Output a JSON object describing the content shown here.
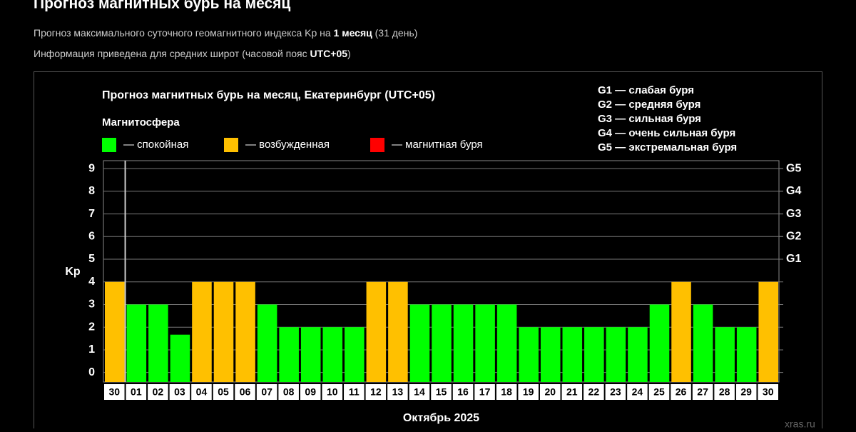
{
  "header": {
    "title": "Прогноз магнитных бурь на месяц",
    "line1": [
      "Прогноз максимального суточного геомагнитного индекса Kp на ",
      "1 месяц",
      " (31 день)"
    ],
    "line2": [
      "Информация приведена для средних широт (часовой пояс ",
      "UTC+05",
      ")"
    ]
  },
  "chart_data": {
    "type": "bar",
    "title": "Прогноз магнитных бурь на месяц, Екатеринбург (UTC+05)",
    "legend_title": "Магнитосфера",
    "legend": [
      {
        "name": "— спокойная",
        "color": "#00ff00"
      },
      {
        "name": "— возбужденная",
        "color": "#ffc000"
      },
      {
        "name": "— магнитная буря",
        "color": "#ff0000"
      }
    ],
    "storm_legend": [
      "G1 — слабая буря",
      "G2 — средняя буря",
      "G3 — сильная буря",
      "G4 — очень сильная буря",
      "G5 — экстремальная буря"
    ],
    "y_label": "Kp",
    "x_label": "Октябрь 2025",
    "watermark": "xras.ru",
    "categories": [
      "30",
      "01",
      "02",
      "03",
      "04",
      "05",
      "06",
      "07",
      "08",
      "09",
      "10",
      "11",
      "12",
      "13",
      "14",
      "15",
      "16",
      "17",
      "18",
      "19",
      "20",
      "21",
      "22",
      "23",
      "24",
      "25",
      "26",
      "27",
      "28",
      "29",
      "30"
    ],
    "values": [
      4,
      3,
      3,
      1.67,
      4,
      4,
      4,
      3,
      2,
      2,
      2,
      2,
      4,
      4,
      3,
      3,
      3,
      3,
      3,
      2,
      2,
      2,
      2,
      2,
      2,
      3,
      4,
      3,
      2,
      2,
      4
    ],
    "colors": [
      "#ffc000",
      "#00ff00",
      "#00ff00",
      "#00ff00",
      "#ffc000",
      "#ffc000",
      "#ffc000",
      "#00ff00",
      "#00ff00",
      "#00ff00",
      "#00ff00",
      "#00ff00",
      "#ffc000",
      "#ffc000",
      "#00ff00",
      "#00ff00",
      "#00ff00",
      "#00ff00",
      "#00ff00",
      "#00ff00",
      "#00ff00",
      "#00ff00",
      "#00ff00",
      "#00ff00",
      "#00ff00",
      "#00ff00",
      "#ffc000",
      "#00ff00",
      "#00ff00",
      "#00ff00",
      "#ffc000"
    ],
    "ylim": [
      -0.42,
      9.35
    ],
    "yticks": [
      0,
      1,
      2,
      3,
      4,
      5,
      6,
      7,
      8,
      9
    ],
    "y2lim": [
      -0.42,
      9.35
    ],
    "y2ticks": [
      {
        "value": 5,
        "label": "G1"
      },
      {
        "value": 6,
        "label": "G2"
      },
      {
        "value": 7,
        "label": "G3"
      },
      {
        "value": 8,
        "label": "G4"
      },
      {
        "value": 9,
        "label": "G5"
      }
    ],
    "grid": true
  }
}
